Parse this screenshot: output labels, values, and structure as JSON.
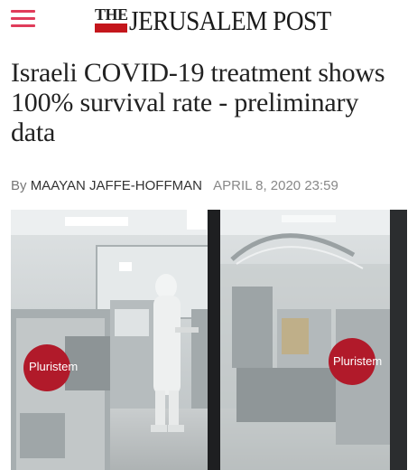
{
  "header": {
    "menu_icon": "hamburger-menu-icon",
    "logo": {
      "prefix": "THE",
      "name": "JERUSALEM POST"
    },
    "accent_color": "#e03c5a",
    "logo_red": "#c4161c"
  },
  "article": {
    "headline": "Israeli COVID-19 treatment shows 100% survival rate - preliminary data",
    "byline_prefix": "By",
    "author": "MAAYAN JAFFE-HOFFMAN",
    "date": "APRIL 8, 2020 23:59"
  },
  "photo": {
    "logo_text": "Pluristem"
  }
}
